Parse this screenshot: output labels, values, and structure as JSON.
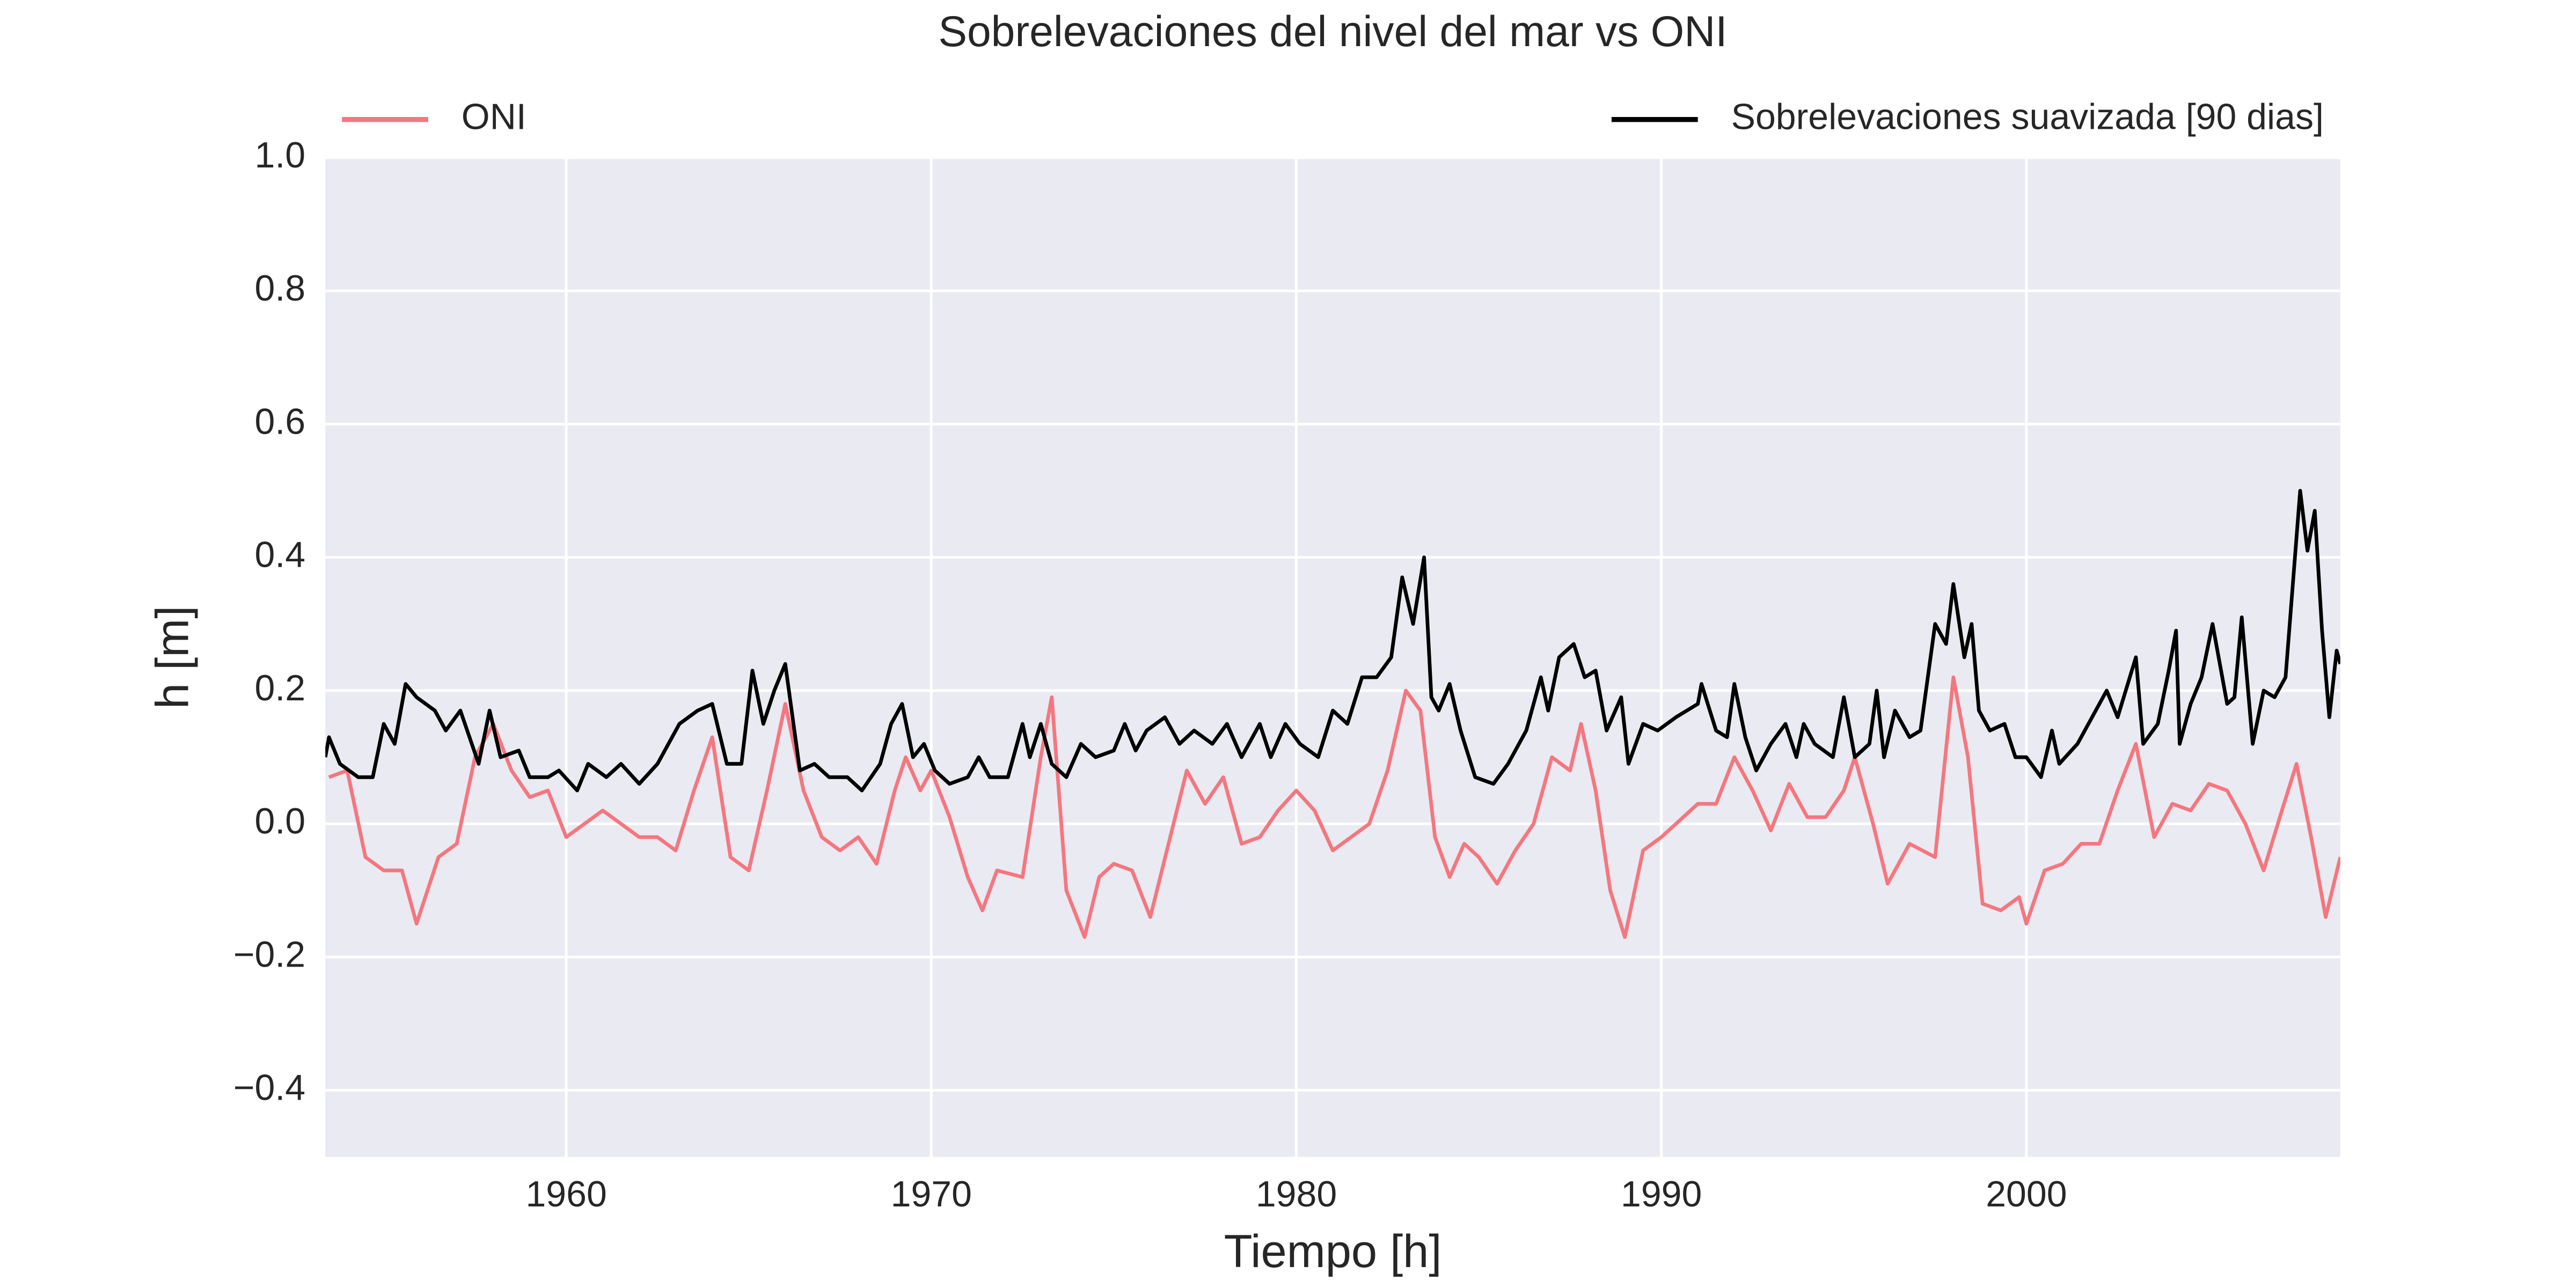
{
  "chart_data": {
    "type": "line",
    "title": "Sobrelevaciones del nivel del mar vs ONI",
    "x_label": "Tiempo [h]",
    "y_label": "h [m]",
    "xlim": [
      1953.4,
      2008.6
    ],
    "xticks": [
      1960,
      1970,
      1980,
      1990,
      2000
    ],
    "ylim": [
      -0.5,
      1.0
    ],
    "yticks": [
      {
        "value": -0.4,
        "label": "−0.4"
      },
      {
        "value": -0.2,
        "label": "−0.2"
      },
      {
        "value": 0,
        "label": "0.0"
      },
      0.2,
      0.4,
      0.6,
      0.8,
      {
        "value": 1.0,
        "label": "1.0"
      }
    ],
    "grid": true,
    "background": "#eaeaf2",
    "series": [
      {
        "name": "ONI",
        "color": "#f4777f",
        "legend": "upper left",
        "x": [
          1953.5,
          1954.0,
          1954.5,
          1955.0,
          1955.5,
          1955.9,
          1956.5,
          1957.0,
          1957.5,
          1958.0,
          1958.5,
          1959.0,
          1959.5,
          1960.0,
          1960.5,
          1961.0,
          1961.5,
          1962.0,
          1962.5,
          1963.0,
          1963.5,
          1964.0,
          1964.5,
          1965.0,
          1965.5,
          1966.0,
          1966.5,
          1967.0,
          1967.5,
          1968.0,
          1968.5,
          1969.0,
          1969.3,
          1969.7,
          1970.0,
          1970.5,
          1971.0,
          1971.4,
          1971.8,
          1972.5,
          1973.0,
          1973.3,
          1973.7,
          1974.2,
          1974.6,
          1975.0,
          1975.5,
          1976.0,
          1976.5,
          1977.0,
          1977.5,
          1978.0,
          1978.5,
          1979.0,
          1979.5,
          1980.0,
          1980.5,
          1981.0,
          1981.5,
          1982.0,
          1982.5,
          1983.0,
          1983.4,
          1983.8,
          1984.2,
          1984.6,
          1985.0,
          1985.5,
          1986.0,
          1986.5,
          1987.0,
          1987.5,
          1987.8,
          1988.2,
          1988.6,
          1989.0,
          1989.5,
          1990.0,
          1991.0,
          1991.5,
          1992.0,
          1992.5,
          1993.0,
          1993.5,
          1994.0,
          1994.5,
          1995.0,
          1995.3,
          1995.8,
          1996.2,
          1996.8,
          1997.5,
          1998.0,
          1998.4,
          1998.8,
          1999.3,
          1999.8,
          2000.0,
          2000.5,
          2001.0,
          2001.5,
          2002.0,
          2002.5,
          2003.0,
          2003.5,
          2004.0,
          2004.5,
          2005.0,
          2005.5,
          2006.0,
          2006.5,
          2007.0,
          2007.4,
          2007.8,
          2008.2,
          2008.6
        ],
        "values": [
          0.07,
          0.08,
          -0.05,
          -0.07,
          -0.07,
          -0.15,
          -0.05,
          -0.03,
          0.1,
          0.15,
          0.08,
          0.04,
          0.05,
          -0.02,
          0.0,
          0.02,
          0.0,
          -0.02,
          -0.02,
          -0.04,
          0.05,
          0.13,
          -0.05,
          -0.07,
          0.05,
          0.18,
          0.05,
          -0.02,
          -0.04,
          -0.02,
          -0.06,
          0.05,
          0.1,
          0.05,
          0.08,
          0.01,
          -0.08,
          -0.13,
          -0.07,
          -0.08,
          0.1,
          0.19,
          -0.1,
          -0.17,
          -0.08,
          -0.06,
          -0.07,
          -0.14,
          -0.03,
          0.08,
          0.03,
          0.07,
          -0.03,
          -0.02,
          0.02,
          0.05,
          0.02,
          -0.04,
          -0.02,
          0.0,
          0.08,
          0.2,
          0.17,
          -0.02,
          -0.08,
          -0.03,
          -0.05,
          -0.09,
          -0.04,
          0.0,
          0.1,
          0.08,
          0.15,
          0.05,
          -0.1,
          -0.17,
          -0.04,
          -0.02,
          0.03,
          0.03,
          0.1,
          0.05,
          -0.01,
          0.06,
          0.01,
          0.01,
          0.05,
          0.1,
          0.0,
          -0.09,
          -0.03,
          -0.05,
          0.22,
          0.1,
          -0.12,
          -0.13,
          -0.11,
          -0.15,
          -0.07,
          -0.06,
          -0.03,
          -0.03,
          0.05,
          0.12,
          -0.02,
          0.03,
          0.02,
          0.06,
          0.05,
          0.0,
          -0.07,
          0.02,
          0.09,
          -0.02,
          -0.14,
          -0.05
        ]
      },
      {
        "name": "Sobrelevaciones suavizada [90 dias]",
        "color": "#000000",
        "legend": "upper right",
        "x": [
          1953.4,
          1953.5,
          1953.8,
          1954.3,
          1954.7,
          1955.0,
          1955.3,
          1955.6,
          1955.9,
          1956.4,
          1956.7,
          1957.1,
          1957.6,
          1957.9,
          1958.2,
          1958.7,
          1959.0,
          1959.5,
          1959.8,
          1960.3,
          1960.6,
          1961.1,
          1961.5,
          1962.0,
          1962.5,
          1963.1,
          1963.6,
          1964.0,
          1964.4,
          1964.8,
          1965.1,
          1965.4,
          1965.7,
          1966.0,
          1966.4,
          1966.8,
          1967.2,
          1967.7,
          1968.1,
          1968.6,
          1968.9,
          1969.2,
          1969.5,
          1969.8,
          1970.1,
          1970.5,
          1971.0,
          1971.3,
          1971.6,
          1972.1,
          1972.5,
          1972.7,
          1973.0,
          1973.3,
          1973.7,
          1974.1,
          1974.5,
          1975.0,
          1975.3,
          1975.6,
          1975.9,
          1976.4,
          1976.8,
          1977.2,
          1977.7,
          1978.1,
          1978.5,
          1979.0,
          1979.3,
          1979.7,
          1980.1,
          1980.6,
          1981.0,
          1981.4,
          1981.8,
          1982.2,
          1982.6,
          1982.9,
          1983.2,
          1983.5,
          1983.7,
          1983.9,
          1984.2,
          1984.5,
          1984.9,
          1985.4,
          1985.8,
          1986.0,
          1986.3,
          1986.7,
          1986.9,
          1987.2,
          1987.6,
          1987.9,
          1988.2,
          1988.5,
          1988.9,
          1989.1,
          1989.5,
          1989.9,
          1990.4,
          1991.0,
          1991.1,
          1991.5,
          1991.8,
          1992.0,
          1992.3,
          1992.6,
          1993.0,
          1993.4,
          1993.7,
          1993.9,
          1994.2,
          1994.7,
          1995.0,
          1995.3,
          1995.7,
          1995.9,
          1996.1,
          1996.4,
          1996.8,
          1997.1,
          1997.5,
          1997.8,
          1998.0,
          1998.3,
          1998.5,
          1998.7,
          1999.0,
          1999.4,
          1999.7,
          2000.0,
          2000.4,
          2000.7,
          2000.9,
          2001.4,
          2001.9,
          2002.2,
          2002.5,
          2003.0,
          2003.2,
          2003.6,
          2003.9,
          2004.1,
          2004.2,
          2004.5,
          2004.8,
          2005.1,
          2005.5,
          2005.7,
          2005.9,
          2006.2,
          2006.5,
          2006.8,
          2007.1,
          2007.5,
          2007.7,
          2007.9,
          2008.1,
          2008.3,
          2008.5,
          2008.6
        ],
        "values": [
          0.1,
          0.13,
          0.09,
          0.07,
          0.07,
          0.15,
          0.12,
          0.21,
          0.19,
          0.17,
          0.14,
          0.17,
          0.09,
          0.17,
          0.1,
          0.11,
          0.07,
          0.07,
          0.08,
          0.05,
          0.09,
          0.07,
          0.09,
          0.06,
          0.09,
          0.15,
          0.17,
          0.18,
          0.09,
          0.09,
          0.23,
          0.15,
          0.2,
          0.24,
          0.08,
          0.09,
          0.07,
          0.07,
          0.05,
          0.09,
          0.15,
          0.18,
          0.1,
          0.12,
          0.08,
          0.06,
          0.07,
          0.1,
          0.07,
          0.07,
          0.15,
          0.1,
          0.15,
          0.09,
          0.07,
          0.12,
          0.1,
          0.11,
          0.15,
          0.11,
          0.14,
          0.16,
          0.12,
          0.14,
          0.12,
          0.15,
          0.1,
          0.15,
          0.1,
          0.15,
          0.12,
          0.1,
          0.17,
          0.15,
          0.22,
          0.22,
          0.25,
          0.37,
          0.3,
          0.4,
          0.19,
          0.17,
          0.21,
          0.14,
          0.07,
          0.06,
          0.09,
          0.11,
          0.14,
          0.22,
          0.17,
          0.25,
          0.27,
          0.22,
          0.23,
          0.14,
          0.19,
          0.09,
          0.15,
          0.14,
          0.16,
          0.18,
          0.21,
          0.14,
          0.13,
          0.21,
          0.13,
          0.08,
          0.12,
          0.15,
          0.1,
          0.15,
          0.12,
          0.1,
          0.19,
          0.1,
          0.12,
          0.2,
          0.1,
          0.17,
          0.13,
          0.14,
          0.3,
          0.27,
          0.36,
          0.25,
          0.3,
          0.17,
          0.14,
          0.15,
          0.1,
          0.1,
          0.07,
          0.14,
          0.09,
          0.12,
          0.17,
          0.2,
          0.16,
          0.25,
          0.12,
          0.15,
          0.23,
          0.29,
          0.12,
          0.18,
          0.22,
          0.3,
          0.18,
          0.19,
          0.31,
          0.12,
          0.2,
          0.19,
          0.22,
          0.5,
          0.41,
          0.47,
          0.29,
          0.16,
          0.26,
          0.24
        ]
      }
    ]
  }
}
